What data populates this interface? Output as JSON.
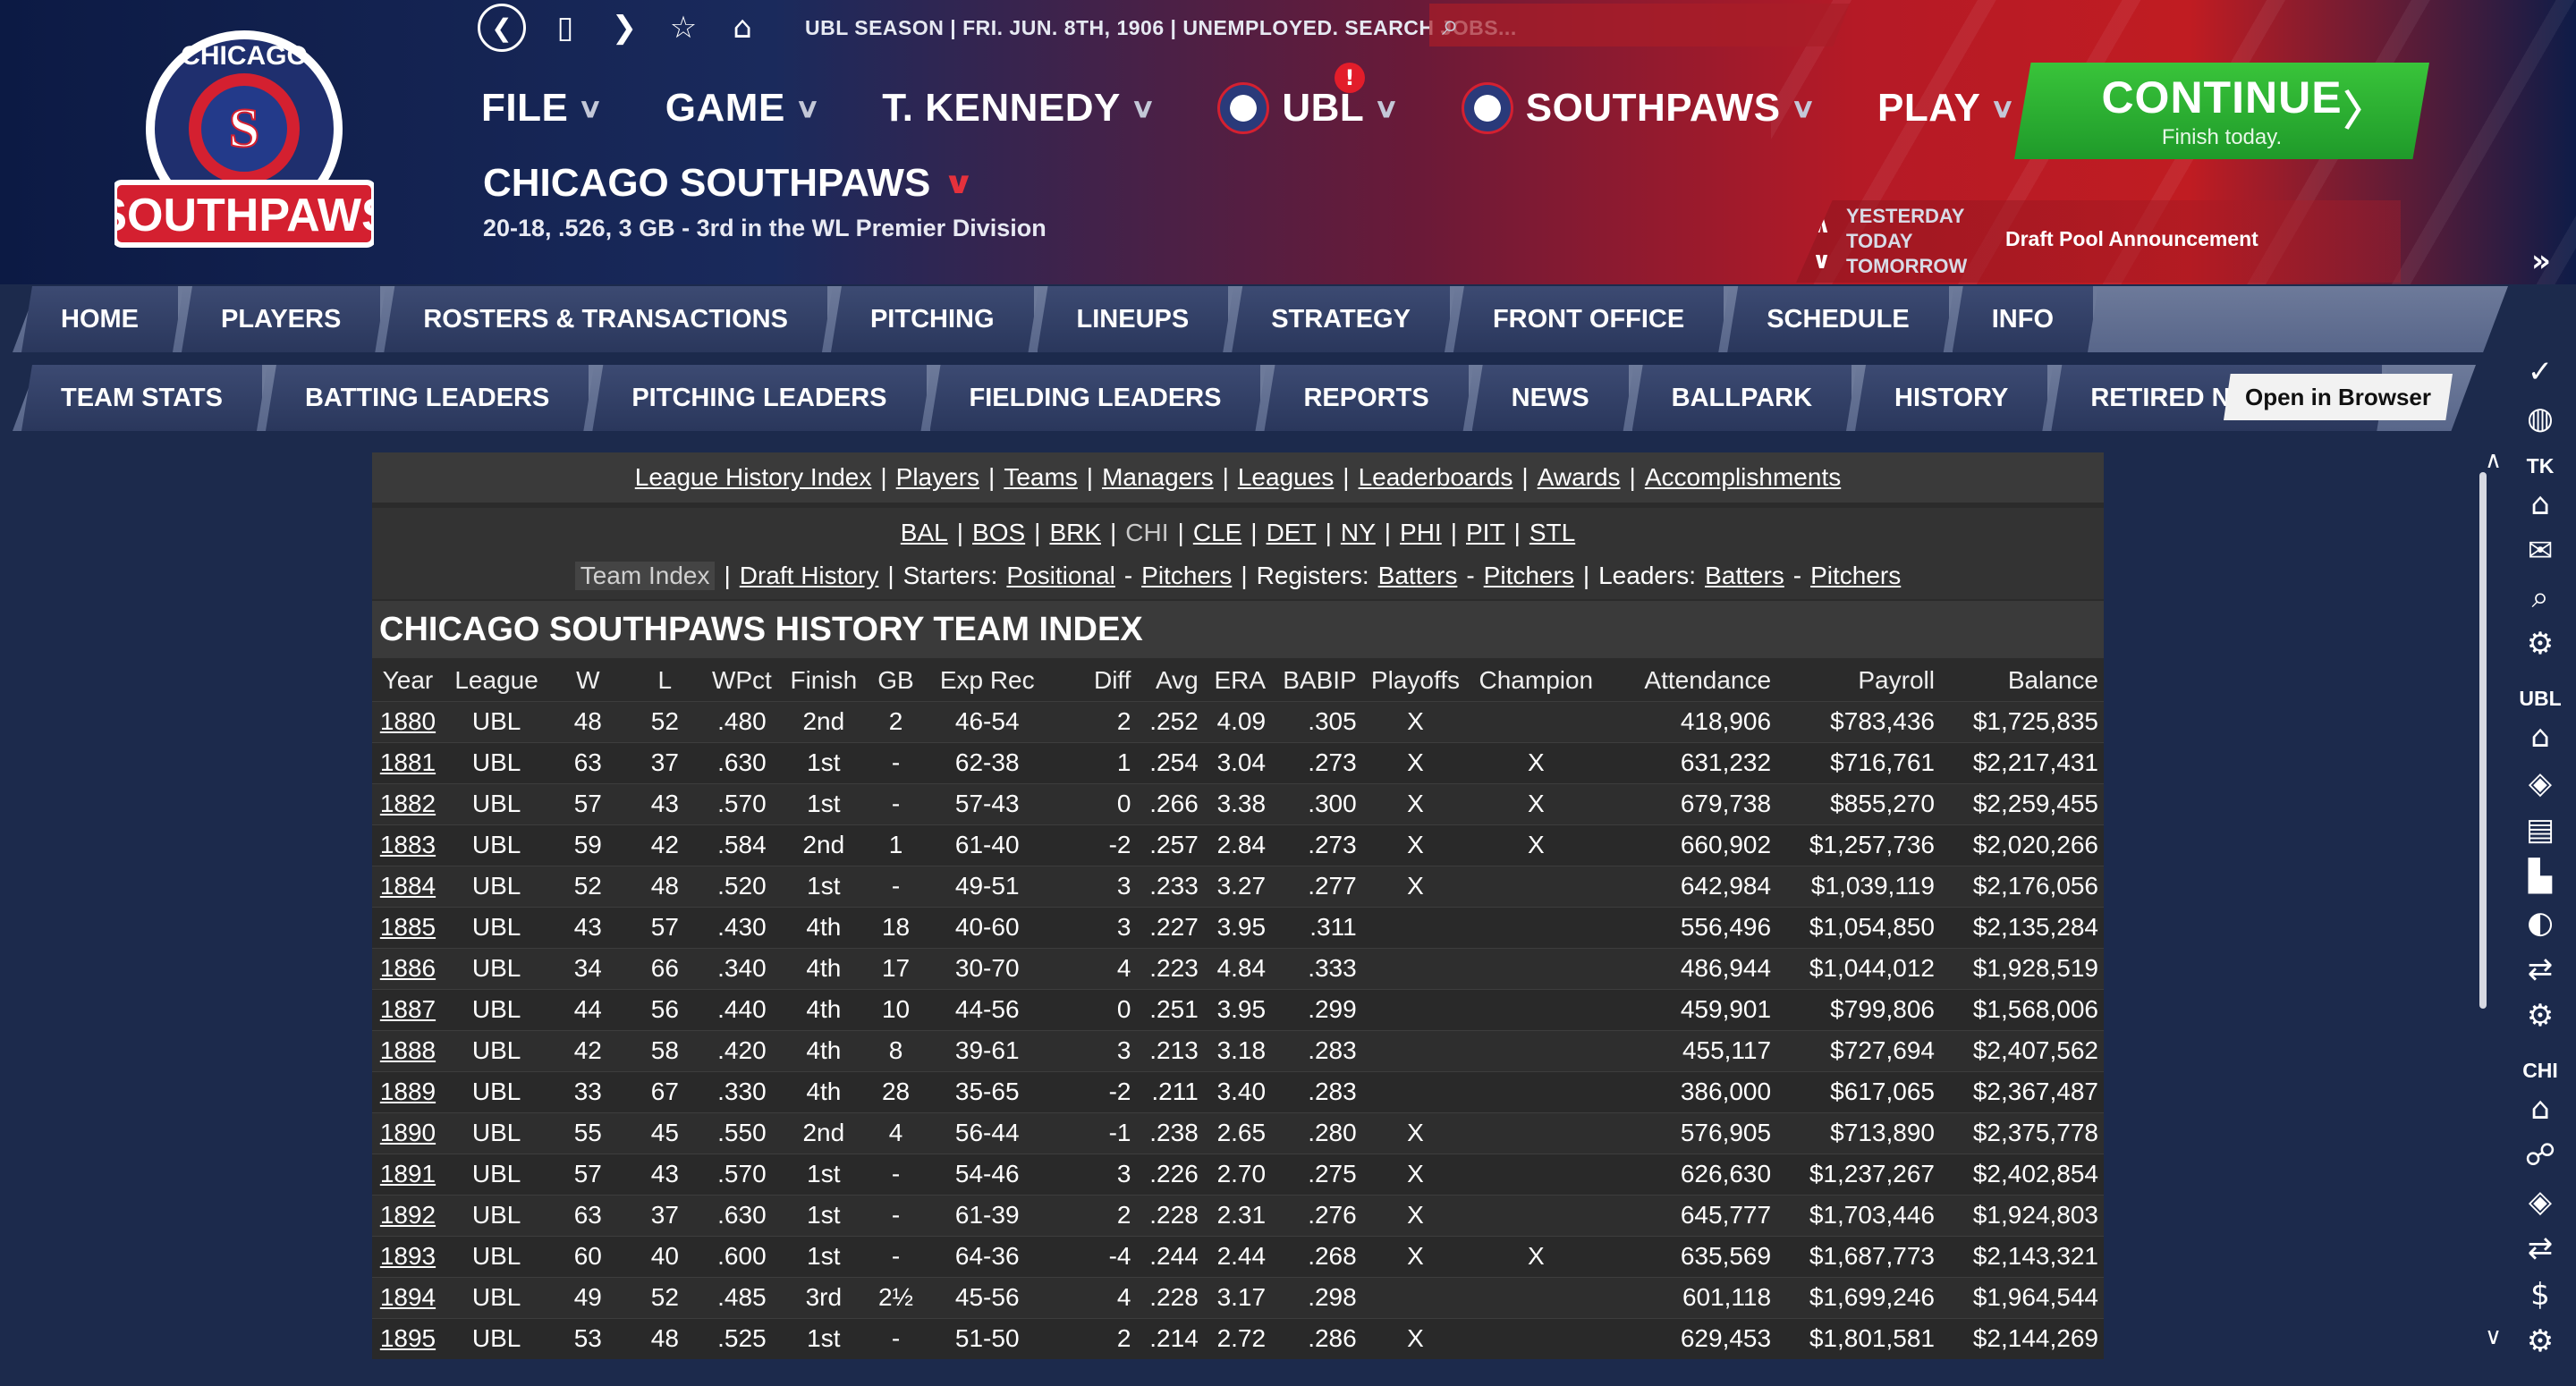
{
  "topbar": {
    "season_text": "UBL SEASON  |  FRI. JUN. 8TH, 1906  |  UNEMPLOYED. SEARCH JOBS..."
  },
  "logo": {
    "top_text": "CHICAGO",
    "bottom_text": "SOUTHPAWS"
  },
  "menu": {
    "file": "FILE",
    "game": "GAME",
    "manager": "T. KENNEDY",
    "league": "UBL",
    "team": "SOUTHPAWS",
    "play": "PLAY",
    "alert_count": "!"
  },
  "continue": {
    "label": "CONTINUE",
    "sub": "Finish today.",
    "arrow": "〉"
  },
  "team": {
    "name": "CHICAGO SOUTHPAWS",
    "record": "20-18, .526, 3 GB - 3rd in the WL Premier Division"
  },
  "daynav": {
    "yesterday": "YESTERDAY",
    "today": "TODAY",
    "tomorrow": "TOMORROW",
    "event": "Draft Pool Announcement"
  },
  "tabs1": [
    "HOME",
    "PLAYERS",
    "ROSTERS & TRANSACTIONS",
    "PITCHING",
    "LINEUPS",
    "STRATEGY",
    "FRONT OFFICE",
    "SCHEDULE",
    "INFO"
  ],
  "tabs2": [
    "TEAM STATS",
    "BATTING LEADERS",
    "PITCHING LEADERS",
    "FIELDING LEADERS",
    "REPORTS",
    "NEWS",
    "BALLPARK",
    "HISTORY",
    "RETIRED NUMBERS"
  ],
  "open_browser": "Open in Browser",
  "sidebar": {
    "tk": "TK",
    "ubl": "UBL",
    "chi": "CHI"
  },
  "links1": [
    "League History Index",
    "Players",
    "Teams",
    "Managers",
    "Leagues",
    "Leaderboards",
    "Awards",
    "Accomplishments"
  ],
  "teams_links": [
    "BAL",
    "BOS",
    "BRK",
    "CHI",
    "CLE",
    "DET",
    "NY",
    "PHI",
    "PIT",
    "STL"
  ],
  "links2": {
    "team_index": "Team Index",
    "draft_history": "Draft History",
    "starters_label": "Starters:",
    "positional": "Positional",
    "pitchers": "Pitchers",
    "registers_label": "Registers:",
    "batters": "Batters",
    "leaders_label": "Leaders:"
  },
  "title": "CHICAGO SOUTHPAWS HISTORY TEAM INDEX",
  "columns": [
    "Year",
    "League",
    "W",
    "L",
    "WPct",
    "Finish",
    "GB",
    "Exp Rec",
    "Diff",
    "Avg",
    "ERA",
    "BABIP",
    "Playoffs",
    "Champion",
    "Attendance",
    "Payroll",
    "Balance"
  ],
  "rows": [
    [
      "1880",
      "UBL",
      "48",
      "52",
      ".480",
      "2nd",
      "2",
      "46-54",
      "2",
      ".252",
      "4.09",
      ".305",
      "X",
      "",
      "418,906",
      "$783,436",
      "$1,725,835"
    ],
    [
      "1881",
      "UBL",
      "63",
      "37",
      ".630",
      "1st",
      "-",
      "62-38",
      "1",
      ".254",
      "3.04",
      ".273",
      "X",
      "X",
      "631,232",
      "$716,761",
      "$2,217,431"
    ],
    [
      "1882",
      "UBL",
      "57",
      "43",
      ".570",
      "1st",
      "-",
      "57-43",
      "0",
      ".266",
      "3.38",
      ".300",
      "X",
      "X",
      "679,738",
      "$855,270",
      "$2,259,455"
    ],
    [
      "1883",
      "UBL",
      "59",
      "42",
      ".584",
      "2nd",
      "1",
      "61-40",
      "-2",
      ".257",
      "2.84",
      ".273",
      "X",
      "X",
      "660,902",
      "$1,257,736",
      "$2,020,266"
    ],
    [
      "1884",
      "UBL",
      "52",
      "48",
      ".520",
      "1st",
      "-",
      "49-51",
      "3",
      ".233",
      "3.27",
      ".277",
      "X",
      "",
      "642,984",
      "$1,039,119",
      "$2,176,056"
    ],
    [
      "1885",
      "UBL",
      "43",
      "57",
      ".430",
      "4th",
      "18",
      "40-60",
      "3",
      ".227",
      "3.95",
      ".311",
      "",
      "",
      "556,496",
      "$1,054,850",
      "$2,135,284"
    ],
    [
      "1886",
      "UBL",
      "34",
      "66",
      ".340",
      "4th",
      "17",
      "30-70",
      "4",
      ".223",
      "4.84",
      ".333",
      "",
      "",
      "486,944",
      "$1,044,012",
      "$1,928,519"
    ],
    [
      "1887",
      "UBL",
      "44",
      "56",
      ".440",
      "4th",
      "10",
      "44-56",
      "0",
      ".251",
      "3.95",
      ".299",
      "",
      "",
      "459,901",
      "$799,806",
      "$1,568,006"
    ],
    [
      "1888",
      "UBL",
      "42",
      "58",
      ".420",
      "4th",
      "8",
      "39-61",
      "3",
      ".213",
      "3.18",
      ".283",
      "",
      "",
      "455,117",
      "$727,694",
      "$2,407,562"
    ],
    [
      "1889",
      "UBL",
      "33",
      "67",
      ".330",
      "4th",
      "28",
      "35-65",
      "-2",
      ".211",
      "3.40",
      ".283",
      "",
      "",
      "386,000",
      "$617,065",
      "$2,367,487"
    ],
    [
      "1890",
      "UBL",
      "55",
      "45",
      ".550",
      "2nd",
      "4",
      "56-44",
      "-1",
      ".238",
      "2.65",
      ".280",
      "X",
      "",
      "576,905",
      "$713,890",
      "$2,375,778"
    ],
    [
      "1891",
      "UBL",
      "57",
      "43",
      ".570",
      "1st",
      "-",
      "54-46",
      "3",
      ".226",
      "2.70",
      ".275",
      "X",
      "",
      "626,630",
      "$1,237,267",
      "$2,402,854"
    ],
    [
      "1892",
      "UBL",
      "63",
      "37",
      ".630",
      "1st",
      "-",
      "61-39",
      "2",
      ".228",
      "2.31",
      ".276",
      "X",
      "",
      "645,777",
      "$1,703,446",
      "$1,924,803"
    ],
    [
      "1893",
      "UBL",
      "60",
      "40",
      ".600",
      "1st",
      "-",
      "64-36",
      "-4",
      ".244",
      "2.44",
      ".268",
      "X",
      "X",
      "635,569",
      "$1,687,773",
      "$2,143,321"
    ],
    [
      "1894",
      "UBL",
      "49",
      "52",
      ".485",
      "3rd",
      "2½",
      "45-56",
      "4",
      ".228",
      "3.17",
      ".298",
      "",
      "",
      "601,118",
      "$1,699,246",
      "$1,964,544"
    ],
    [
      "1895",
      "UBL",
      "53",
      "48",
      ".525",
      "1st",
      "-",
      "51-50",
      "2",
      ".214",
      "2.72",
      ".286",
      "X",
      "",
      "629,453",
      "$1,801,581",
      "$2,144,269"
    ]
  ]
}
